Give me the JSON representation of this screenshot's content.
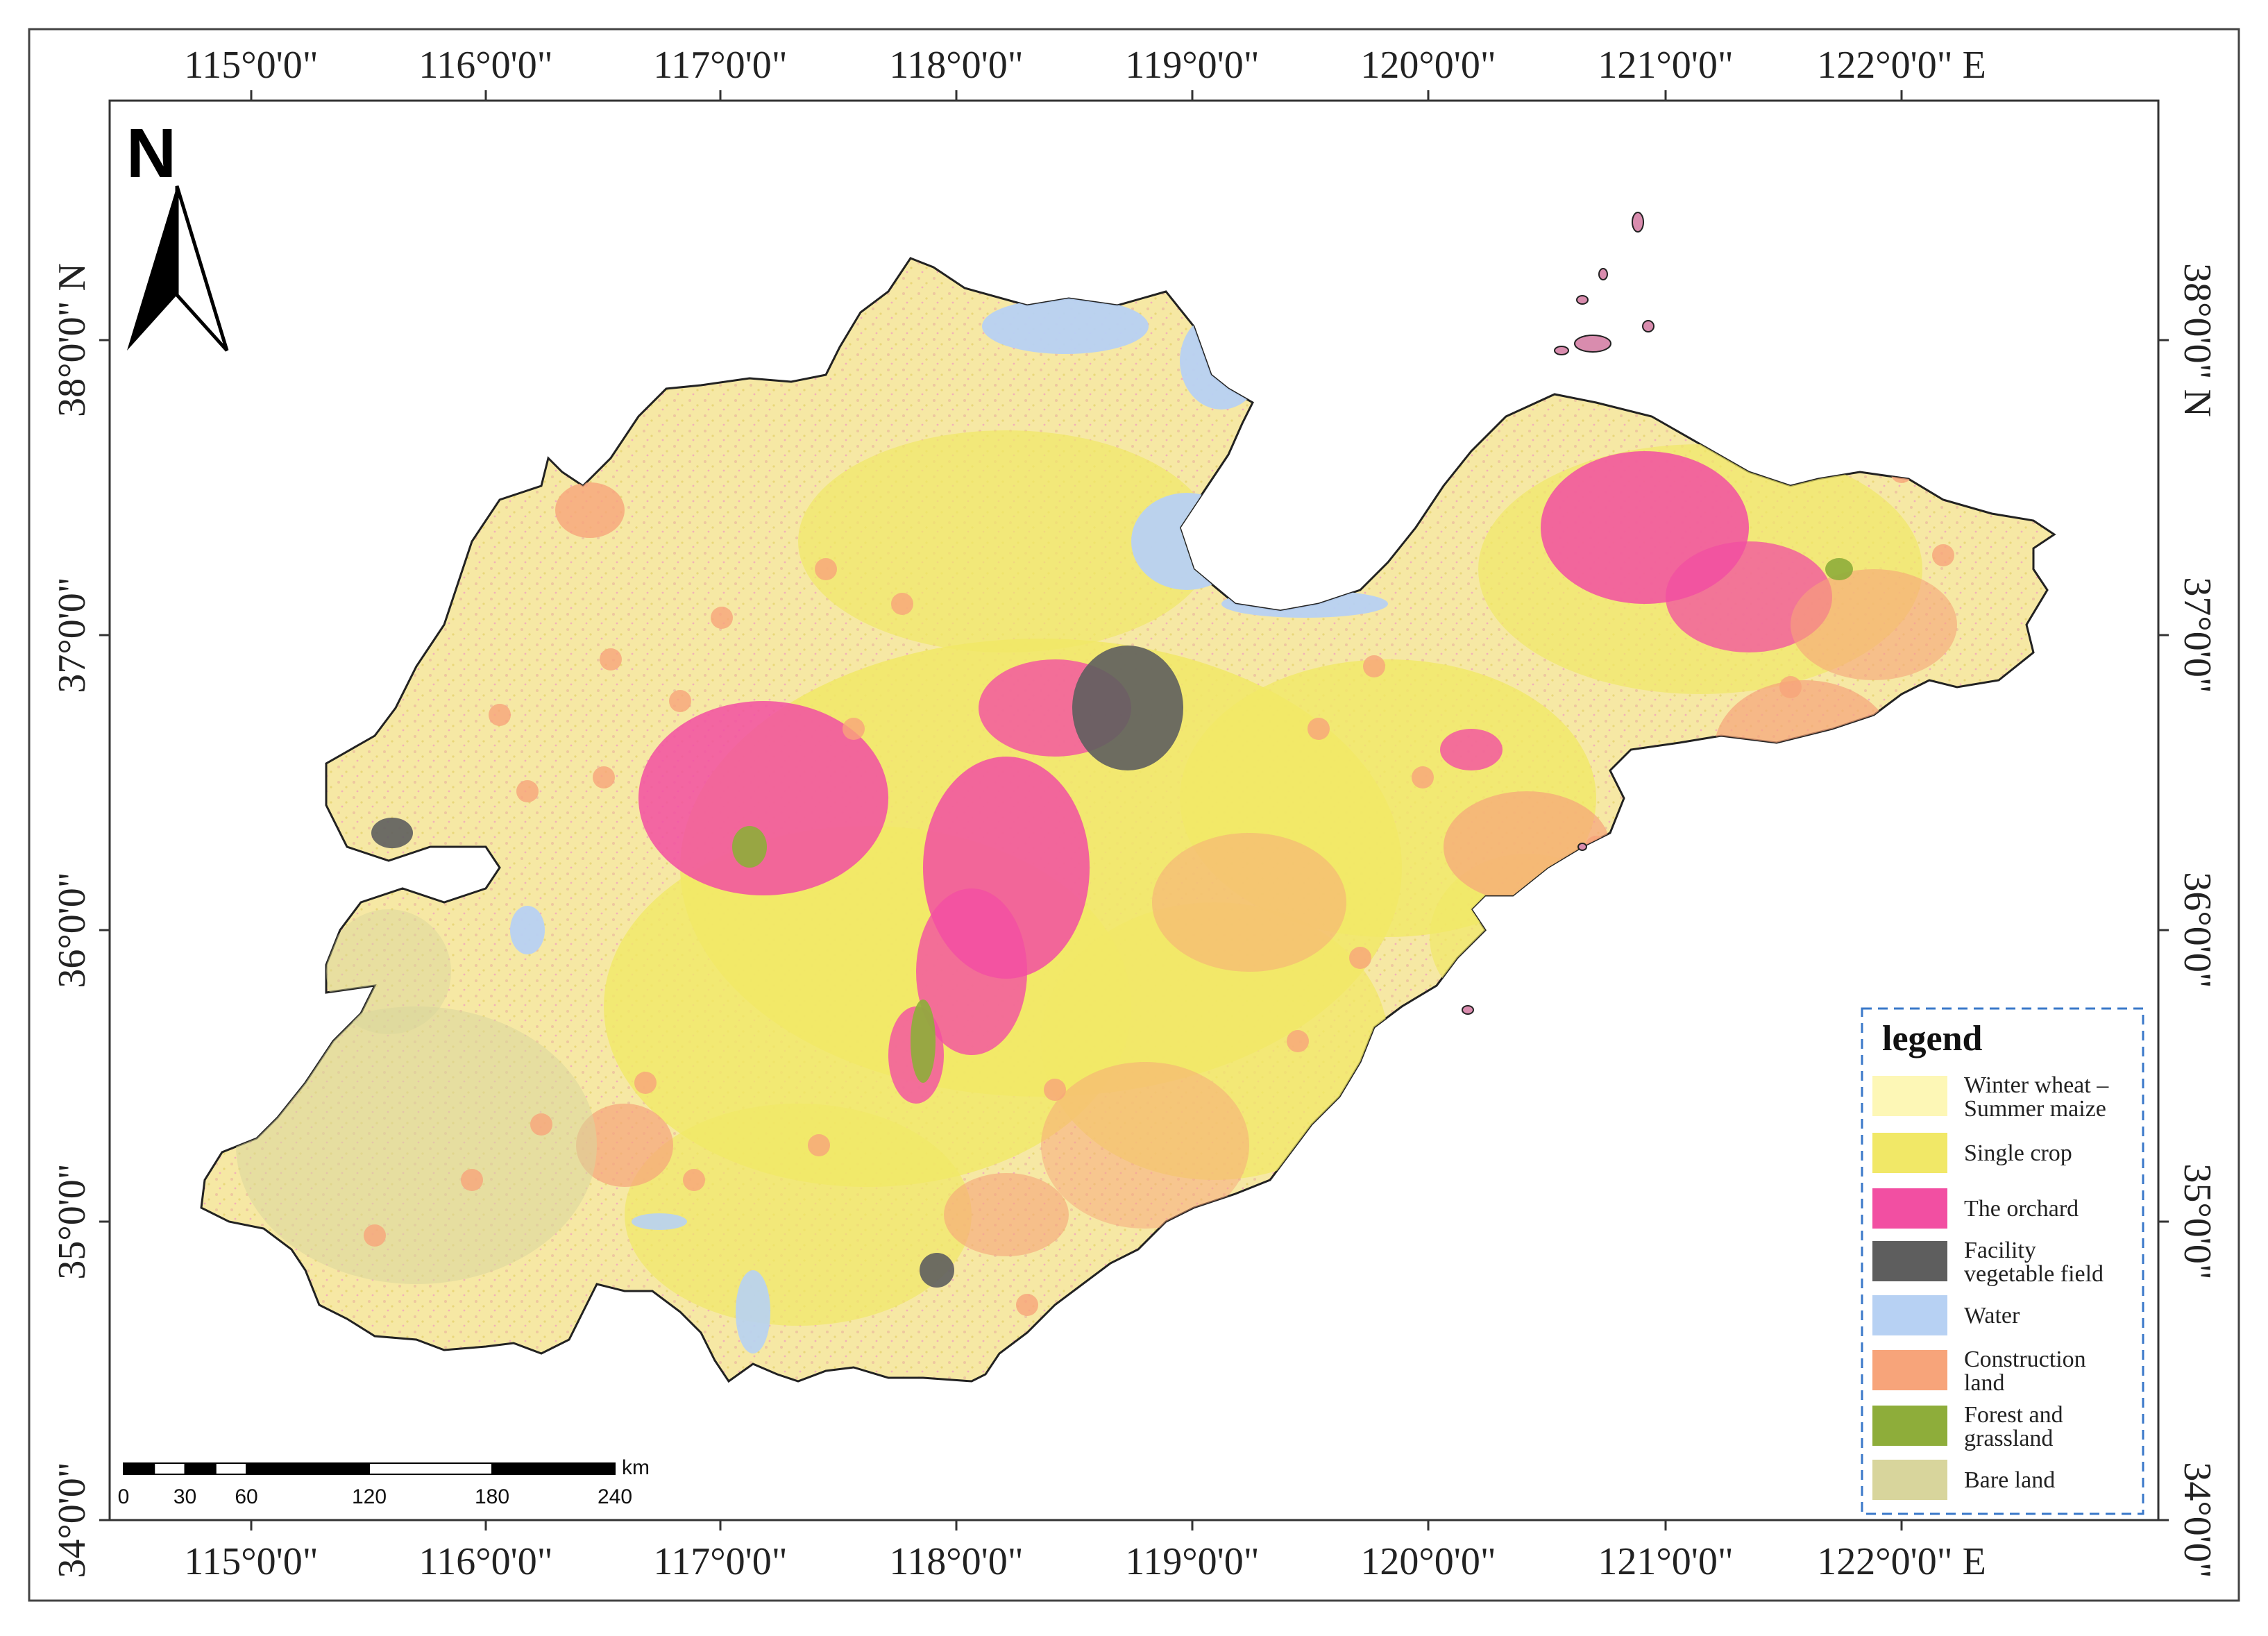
{
  "map": {
    "lon_ticks": [
      "115°0'0\"",
      "116°0'0\"",
      "117°0'0\"",
      "118°0'0\"",
      "119°0'0\"",
      "120°0'0\"",
      "121°0'0\"",
      "122°0'0\""
    ],
    "lon_suffix": "E",
    "lat_ticks": [
      "34°0'0\"",
      "35°0'0\"",
      "36°0'0\"",
      "37°0'0\"",
      "38°0'0\""
    ],
    "lat_suffix": "N",
    "north_label": "N",
    "scale_bar": {
      "ticks": [
        "0",
        "30",
        "60",
        "120",
        "180",
        "240"
      ],
      "unit": "km"
    },
    "legend": {
      "title": "legend",
      "items": [
        {
          "label_lines": [
            "Winter wheat –",
            "Summer maize"
          ],
          "color": "#fdf7b6"
        },
        {
          "label_lines": [
            "Single crop"
          ],
          "color": "#f1e867"
        },
        {
          "label_lines": [
            "The orchard"
          ],
          "color": "#f24fa2"
        },
        {
          "label_lines": [
            "Facility",
            "vegetable field"
          ],
          "color": "#5e5e5e"
        },
        {
          "label_lines": [
            "Water"
          ],
          "color": "#b7d1f3"
        },
        {
          "label_lines": [
            "Construction",
            "land"
          ],
          "color": "#f7a47a"
        },
        {
          "label_lines": [
            "Forest and",
            "grassland"
          ],
          "color": "#8ead3a"
        },
        {
          "label_lines": [
            "Bare land"
          ],
          "color": "#d8d59c"
        }
      ]
    }
  }
}
